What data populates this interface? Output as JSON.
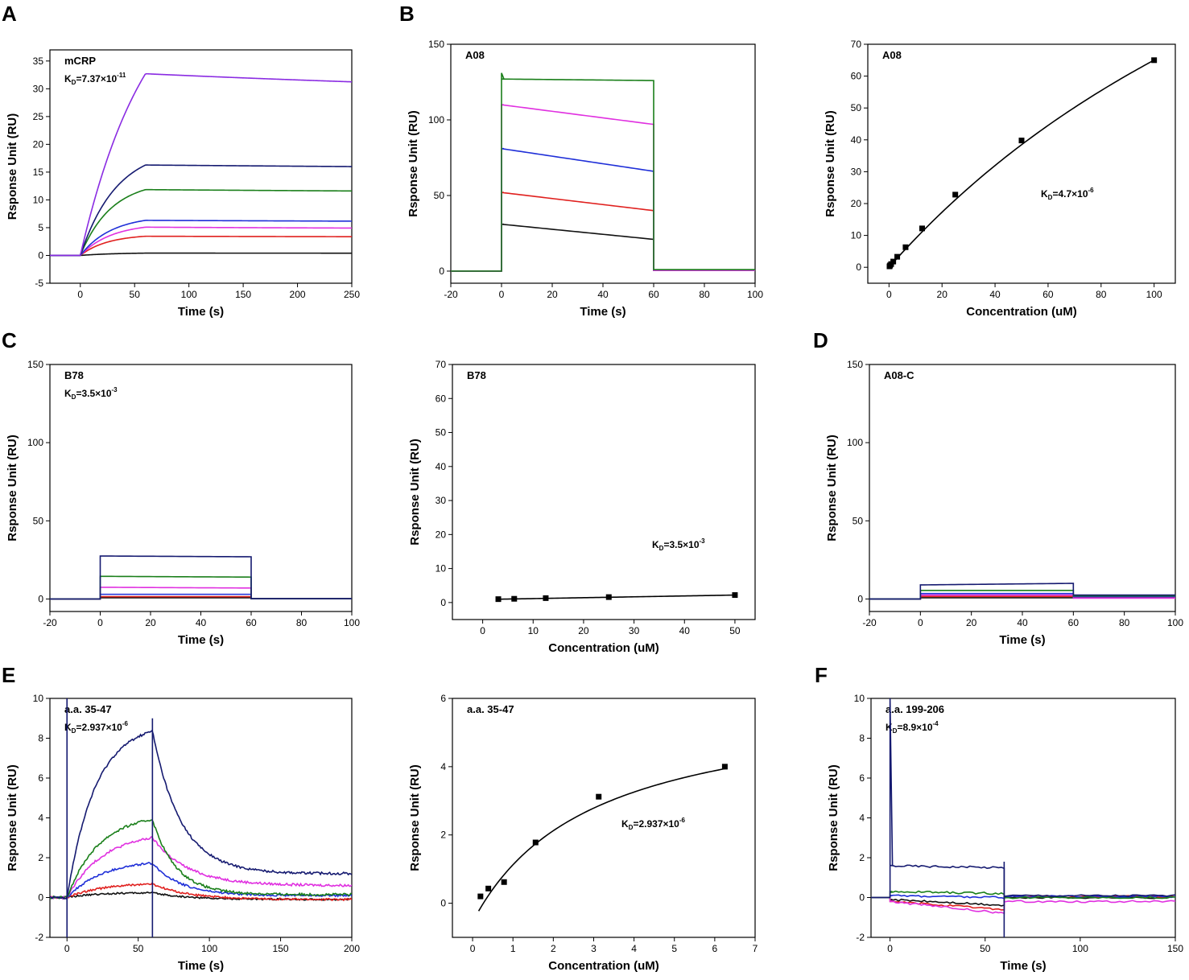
{
  "figure": {
    "panel_letters": [
      "A",
      "B",
      "C",
      "D",
      "E",
      "F"
    ]
  },
  "colors": {
    "black": "#111111",
    "red": "#e0201e",
    "magenta": "#e030e0",
    "blue": "#1f2fd8",
    "green": "#1a7f1a",
    "navy": "#151a70",
    "purple": "#8a2be2"
  },
  "chart_data": [
    {
      "id": "A",
      "type": "line",
      "annotation": "mCRP",
      "kd": {
        "prefix": "K",
        "sub": "D",
        "mantissa": "=7.37×10",
        "exp": "-11"
      },
      "xlabel": "Time (s)",
      "ylabel": "Rsponse Unit (RU)",
      "xlim": [
        -28,
        250
      ],
      "ylim": [
        -5,
        37
      ],
      "xticks": [
        0,
        50,
        100,
        150,
        200,
        250
      ],
      "yticks": [
        -5,
        0,
        5,
        10,
        15,
        20,
        25,
        30,
        35
      ],
      "x_tick_labels": [
        "0",
        "50",
        "100",
        "150",
        "200",
        "250"
      ],
      "y_tick_labels": [
        "-5",
        "0",
        "5",
        "10",
        "15",
        "20",
        "25",
        "30",
        "35"
      ],
      "series": [
        {
          "name": "s1",
          "color": "#111111",
          "kind": "kinetic",
          "t0": 0,
          "t1": 60,
          "tend": 250,
          "xstart": -28,
          "Req": 0.5,
          "ks": 0.03,
          "kd": 0.0005
        },
        {
          "name": "s2",
          "color": "#e0201e",
          "kind": "kinetic",
          "t0": 0,
          "t1": 60,
          "tend": 250,
          "xstart": -28,
          "Req": 3.8,
          "ks": 0.04,
          "kd": 0.0007
        },
        {
          "name": "s3",
          "color": "#e030e0",
          "kind": "kinetic",
          "t0": 0,
          "t1": 60,
          "tend": 250,
          "xstart": -28,
          "Req": 5.8,
          "ks": 0.035,
          "kd": 0.001
        },
        {
          "name": "s4",
          "color": "#1f2fd8",
          "kind": "kinetic",
          "t0": 0,
          "t1": 60,
          "tend": 250,
          "xstart": -28,
          "Req": 7.2,
          "ks": 0.035,
          "kd": 0.0007
        },
        {
          "name": "s5",
          "color": "#1a7f1a",
          "kind": "kinetic",
          "t0": 0,
          "t1": 60,
          "tend": 250,
          "xstart": -28,
          "Req": 13.5,
          "ks": 0.035,
          "kd": 0.0006
        },
        {
          "name": "s6",
          "color": "#151a70",
          "kind": "kinetic",
          "t0": 0,
          "t1": 60,
          "tend": 250,
          "xstart": -28,
          "Req": 19.5,
          "ks": 0.03,
          "kd": 0.0005
        },
        {
          "name": "s7",
          "color": "#8a2be2",
          "kind": "kinetic",
          "t0": 0,
          "t1": 60,
          "tend": 250,
          "xstart": -28,
          "Req": 53,
          "ks": 0.016,
          "kd": 0.0008,
          "floor": 0.83
        }
      ]
    },
    {
      "id": "B1",
      "type": "line",
      "annotation": "A08",
      "xlabel": "Time (s)",
      "ylabel": "Rsponse Unit (RU)",
      "xlim": [
        -20,
        100
      ],
      "ylim": [
        -8,
        150
      ],
      "xticks": [
        -20,
        0,
        20,
        40,
        60,
        80,
        100
      ],
      "yticks": [
        0,
        50,
        100,
        150
      ],
      "x_tick_labels": [
        "-20",
        "0",
        "20",
        "40",
        "60",
        "80",
        "100"
      ],
      "y_tick_labels": [
        "0",
        "50",
        "100",
        "150"
      ],
      "series": [
        {
          "name": "s1",
          "color": "#111111",
          "kind": "square",
          "xstart": -20,
          "t0": 0,
          "t1": 60,
          "tend": 100,
          "base": 0,
          "top0": 31,
          "top1": 21,
          "after": 0.5
        },
        {
          "name": "s2",
          "color": "#e0201e",
          "kind": "square",
          "xstart": -20,
          "t0": 0,
          "t1": 60,
          "tend": 100,
          "base": 0,
          "top0": 52,
          "top1": 40,
          "after": 0.5
        },
        {
          "name": "s3",
          "color": "#1f2fd8",
          "kind": "square",
          "xstart": -20,
          "t0": 0,
          "t1": 60,
          "tend": 100,
          "base": 0,
          "top0": 81,
          "top1": 66,
          "after": 0.5
        },
        {
          "name": "s4",
          "color": "#e030e0",
          "kind": "square",
          "xstart": -20,
          "t0": 0,
          "t1": 60,
          "tend": 100,
          "base": 0,
          "top0": 110,
          "top1": 97,
          "after": 0.5
        },
        {
          "name": "s5",
          "color": "#1a7f1a",
          "kind": "square",
          "xstart": -20,
          "t0": 0,
          "t1": 60,
          "tend": 100,
          "base": 0,
          "top0": 127,
          "top1": 126,
          "after": 1,
          "spike": 131
        }
      ]
    },
    {
      "id": "B2",
      "type": "scatter",
      "annotation": "A08",
      "kd": {
        "prefix": "K",
        "sub": "D",
        "mantissa": "=4.7×10",
        "exp": "-6"
      },
      "xlabel": "Concentration (uM)",
      "ylabel": "Rsponse Unit (RU)",
      "xlim": [
        -8,
        108
      ],
      "ylim": [
        -5,
        70
      ],
      "xticks": [
        0,
        20,
        40,
        60,
        80,
        100
      ],
      "yticks": [
        0,
        10,
        20,
        30,
        40,
        50,
        60,
        70
      ],
      "x_tick_labels": [
        "0",
        "20",
        "40",
        "60",
        "80",
        "100"
      ],
      "y_tick_labels": [
        "0",
        "10",
        "20",
        "30",
        "40",
        "50",
        "60",
        "70"
      ],
      "points_x": [
        0.2,
        0.4,
        0.8,
        1.6,
        3.1,
        6.25,
        12.5,
        25,
        50,
        100
      ],
      "points_y": [
        0.3,
        0.6,
        1.0,
        1.8,
        3.3,
        6.3,
        12.2,
        22.8,
        39.8,
        65
      ],
      "fit": {
        "kind": "hyperbola",
        "Bmax": 210,
        "Kd": 223,
        "xfrom": 0,
        "xto": 100
      }
    },
    {
      "id": "C1",
      "type": "line",
      "annotation": "B78",
      "kd": {
        "prefix": "K",
        "sub": "D",
        "mantissa": "=3.5×10",
        "exp": "-3"
      },
      "xlabel": "Time (s)",
      "ylabel": "Rsponse Unit (RU)",
      "xlim": [
        -20,
        100
      ],
      "ylim": [
        -8,
        150
      ],
      "xticks": [
        -20,
        0,
        20,
        40,
        60,
        80,
        100
      ],
      "yticks": [
        0,
        50,
        100,
        150
      ],
      "x_tick_labels": [
        "-20",
        "0",
        "20",
        "40",
        "60",
        "80",
        "100"
      ],
      "y_tick_labels": [
        "0",
        "50",
        "100",
        "150"
      ],
      "series": [
        {
          "name": "s1",
          "color": "#111111",
          "kind": "square",
          "xstart": -20,
          "t0": 0,
          "t1": 60,
          "tend": 100,
          "base": 0,
          "top0": 0.8,
          "top1": 0.8,
          "after": 0.2
        },
        {
          "name": "s2",
          "color": "#e0201e",
          "kind": "square",
          "xstart": -20,
          "t0": 0,
          "t1": 60,
          "tend": 100,
          "base": 0,
          "top0": 1.5,
          "top1": 1.5,
          "after": 0.2
        },
        {
          "name": "s3",
          "color": "#1f2fd8",
          "kind": "square",
          "xstart": -20,
          "t0": 0,
          "t1": 60,
          "tend": 100,
          "base": 0,
          "top0": 3,
          "top1": 3,
          "after": 0.2
        },
        {
          "name": "s4",
          "color": "#e030e0",
          "kind": "square",
          "xstart": -20,
          "t0": 0,
          "t1": 60,
          "tend": 100,
          "base": 0,
          "top0": 7.5,
          "top1": 7,
          "after": 0.2
        },
        {
          "name": "s5",
          "color": "#1a7f1a",
          "kind": "square",
          "xstart": -20,
          "t0": 0,
          "t1": 60,
          "tend": 100,
          "base": 0,
          "top0": 14.5,
          "top1": 14,
          "after": 0.2
        },
        {
          "name": "s6",
          "color": "#151a70",
          "kind": "square",
          "xstart": -20,
          "t0": 0,
          "t1": 60,
          "tend": 100,
          "base": 0,
          "top0": 27.5,
          "top1": 27,
          "after": 0.2
        }
      ]
    },
    {
      "id": "C2",
      "type": "scatter",
      "annotation": "B78",
      "kd": {
        "prefix": "K",
        "sub": "D",
        "mantissa": "=3.5×10",
        "exp": "-3"
      },
      "xlabel": "Concentration (uM)",
      "ylabel": "Rsponse Unit (RU)",
      "xlim": [
        -6,
        54
      ],
      "ylim": [
        -5,
        70
      ],
      "xticks": [
        0,
        10,
        20,
        30,
        40,
        50
      ],
      "yticks": [
        0,
        10,
        20,
        30,
        40,
        50,
        60,
        70
      ],
      "x_tick_labels": [
        "0",
        "10",
        "20",
        "30",
        "40",
        "50"
      ],
      "y_tick_labels": [
        "0",
        "10",
        "20",
        "30",
        "40",
        "50",
        "60",
        "70"
      ],
      "points_x": [
        3.1,
        6.25,
        12.5,
        25,
        50
      ],
      "points_y": [
        1.0,
        1.1,
        1.3,
        1.6,
        2.2
      ],
      "fit": {
        "kind": "linear",
        "a": 0.9,
        "b": 0.026,
        "xfrom": 3.1,
        "xto": 50
      }
    },
    {
      "id": "D",
      "type": "line",
      "annotation": "A08-C",
      "xlabel": "Time (s)",
      "ylabel": "Rsponse Unit (RU)",
      "xlim": [
        -20,
        100
      ],
      "ylim": [
        -8,
        150
      ],
      "xticks": [
        -20,
        0,
        20,
        40,
        60,
        80,
        100
      ],
      "yticks": [
        0,
        50,
        100,
        150
      ],
      "x_tick_labels": [
        "-20",
        "0",
        "20",
        "40",
        "60",
        "80",
        "100"
      ],
      "y_tick_labels": [
        "0",
        "50",
        "100",
        "150"
      ],
      "series": [
        {
          "name": "s1",
          "color": "#111111",
          "kind": "square",
          "xstart": -20,
          "t0": 0,
          "t1": 60,
          "tend": 100,
          "base": 0,
          "top0": 0.8,
          "top1": 0.8,
          "after": 1
        },
        {
          "name": "s2",
          "color": "#e0201e",
          "kind": "square",
          "xstart": -20,
          "t0": 0,
          "t1": 60,
          "tend": 100,
          "base": 0,
          "top0": 1.6,
          "top1": 1.6,
          "after": 1
        },
        {
          "name": "s3",
          "color": "#e030e0",
          "kind": "square",
          "xstart": -20,
          "t0": 0,
          "t1": 60,
          "tend": 100,
          "base": 0,
          "top0": 2.5,
          "top1": 2.5,
          "after": 0.5
        },
        {
          "name": "s4",
          "color": "#1f2fd8",
          "kind": "square",
          "xstart": -20,
          "t0": 0,
          "t1": 60,
          "tend": 100,
          "base": 0,
          "top0": 3.5,
          "top1": 3.5,
          "after": 1.5
        },
        {
          "name": "s5",
          "color": "#1a7f1a",
          "kind": "square",
          "xstart": -20,
          "t0": 0,
          "t1": 60,
          "tend": 100,
          "base": 0,
          "top0": 5.5,
          "top1": 5.5,
          "after": 2
        },
        {
          "name": "s6",
          "color": "#151a70",
          "kind": "square",
          "xstart": -20,
          "t0": 0,
          "t1": 60,
          "tend": 100,
          "base": 0,
          "top0": 9,
          "top1": 10,
          "after": 2.5
        }
      ]
    },
    {
      "id": "E1",
      "type": "line",
      "annotation": "a.a. 35-47",
      "kd": {
        "prefix": "K",
        "sub": "D",
        "mantissa": "=2.937×10",
        "exp": "-6"
      },
      "xlabel": "Time (s)",
      "ylabel": "Rsponse Unit (RU)",
      "xlim": [
        -12,
        200
      ],
      "ylim": [
        -2,
        10
      ],
      "xticks": [
        0,
        50,
        100,
        150,
        200
      ],
      "yticks": [
        -2,
        0,
        2,
        4,
        6,
        8,
        10
      ],
      "x_tick_labels": [
        "0",
        "50",
        "100",
        "150",
        "200"
      ],
      "y_tick_labels": [
        "-2",
        "0",
        "2",
        "4",
        "6",
        "8",
        "10"
      ],
      "series": [
        {
          "name": "s1",
          "color": "#111111",
          "kind": "kinetic",
          "t0": 0,
          "t1": 60,
          "tend": 200,
          "xstart": -12,
          "Req": 0.25,
          "ks": 0.05,
          "kd": 0.02,
          "floor": -0.1,
          "noise": 0.04
        },
        {
          "name": "s2",
          "color": "#e0201e",
          "kind": "kinetic",
          "t0": 0,
          "t1": 60,
          "tend": 200,
          "xstart": -12,
          "Req": 0.75,
          "ks": 0.04,
          "kd": 0.02,
          "floor": -0.1,
          "noise": 0.05
        },
        {
          "name": "s3",
          "color": "#1f2fd8",
          "kind": "kinetic",
          "t0": 0,
          "t1": 60,
          "tend": 200,
          "xstart": -12,
          "Req": 1.9,
          "ks": 0.04,
          "kd": 0.025,
          "floor": 0.1,
          "noise": 0.05
        },
        {
          "name": "s4",
          "color": "#e030e0",
          "kind": "kinetic",
          "t0": 0,
          "t1": 60,
          "tend": 200,
          "xstart": -12,
          "Req": 3.3,
          "ks": 0.04,
          "kd": 0.02,
          "floor": 0.6,
          "noise": 0.06
        },
        {
          "name": "s5",
          "color": "#1a7f1a",
          "kind": "kinetic",
          "t0": 0,
          "t1": 60,
          "tend": 200,
          "xstart": -12,
          "Req": 4.2,
          "ks": 0.045,
          "kd": 0.03,
          "floor": 0.15,
          "noise": 0.06
        },
        {
          "name": "s6",
          "color": "#151a70",
          "kind": "kinetic",
          "t0": 0,
          "t1": 60,
          "tend": 200,
          "xstart": -12,
          "Req": 8.8,
          "ks": 0.05,
          "kd": 0.025,
          "floor": 1.2,
          "noise": 0.06
        }
      ]
    },
    {
      "id": "E2",
      "type": "scatter",
      "annotation": "a.a. 35-47",
      "kd": {
        "prefix": "K",
        "sub": "D",
        "mantissa": "=2.937×10",
        "exp": "-6"
      },
      "xlabel": "Concentration (uM)",
      "ylabel": "Rsponse Unit (RU)",
      "xlim": [
        -0.5,
        7
      ],
      "ylim": [
        -1,
        6
      ],
      "xticks": [
        0,
        1,
        2,
        3,
        4,
        5,
        6,
        7
      ],
      "yticks": [
        0,
        2,
        4,
        6
      ],
      "x_tick_labels": [
        "0",
        "1",
        "2",
        "3",
        "4",
        "5",
        "6",
        "7"
      ],
      "y_tick_labels": [
        "0",
        "2",
        "4",
        "6"
      ],
      "points_x": [
        0.195,
        0.39,
        0.78,
        1.56,
        3.125,
        6.25
      ],
      "points_y": [
        0.2,
        0.43,
        0.62,
        1.78,
        3.12,
        4.0
      ],
      "fit": {
        "kind": "hyperbola_offset",
        "Bmax": 6.6,
        "Kd": 2.937,
        "offset": -0.55,
        "xfrom": 0.15,
        "xto": 6.25
      }
    },
    {
      "id": "F",
      "type": "line",
      "annotation": "a.a. 199-206",
      "kd": {
        "prefix": "K",
        "sub": "D",
        "mantissa": "=8.9×10",
        "exp": "-4"
      },
      "xlabel": "Time (s)",
      "ylabel": "Rsponse Unit (RU)",
      "xlim": [
        -10,
        150
      ],
      "ylim": [
        -2,
        10
      ],
      "xticks": [
        0,
        50,
        100,
        150
      ],
      "yticks": [
        -2,
        0,
        2,
        4,
        6,
        8,
        10
      ],
      "x_tick_labels": [
        "0",
        "50",
        "100",
        "150"
      ],
      "y_tick_labels": [
        "-2",
        "0",
        "2",
        "4",
        "6",
        "8",
        "10"
      ],
      "series": [
        {
          "name": "s1",
          "color": "#111111",
          "kind": "square",
          "xstart": -10,
          "t0": 0,
          "t1": 60,
          "tend": 150,
          "base": 0,
          "top0": -0.1,
          "top1": -0.4,
          "after": 0,
          "noise": 0.05
        },
        {
          "name": "s2",
          "color": "#e0201e",
          "kind": "square",
          "xstart": -10,
          "t0": 0,
          "t1": 60,
          "tend": 150,
          "base": 0,
          "top0": -0.2,
          "top1": -0.6,
          "after": 0.05,
          "noise": 0.05
        },
        {
          "name": "s3",
          "color": "#e030e0",
          "kind": "square",
          "xstart": -10,
          "t0": 0,
          "t1": 60,
          "tend": 150,
          "base": 0,
          "top0": -0.2,
          "top1": -0.8,
          "after": -0.2,
          "noise": 0.05
        },
        {
          "name": "s4",
          "color": "#1f2fd8",
          "kind": "square",
          "xstart": -10,
          "t0": 0,
          "t1": 60,
          "tend": 150,
          "base": 0,
          "top0": 0.1,
          "top1": 0.0,
          "after": 0.05,
          "noise": 0.05
        },
        {
          "name": "s5",
          "color": "#1a7f1a",
          "kind": "square",
          "xstart": -10,
          "t0": 0,
          "t1": 60,
          "tend": 150,
          "base": 0,
          "top0": 0.3,
          "top1": 0.2,
          "after": 0.0,
          "noise": 0.05
        },
        {
          "name": "s6",
          "color": "#151a70",
          "kind": "square",
          "xstart": -10,
          "t0": 0,
          "t1": 60,
          "tend": 150,
          "base": 0,
          "top0": 1.6,
          "top1": 1.5,
          "after": 0.1,
          "noise": 0.05,
          "spike": 10
        }
      ]
    }
  ]
}
